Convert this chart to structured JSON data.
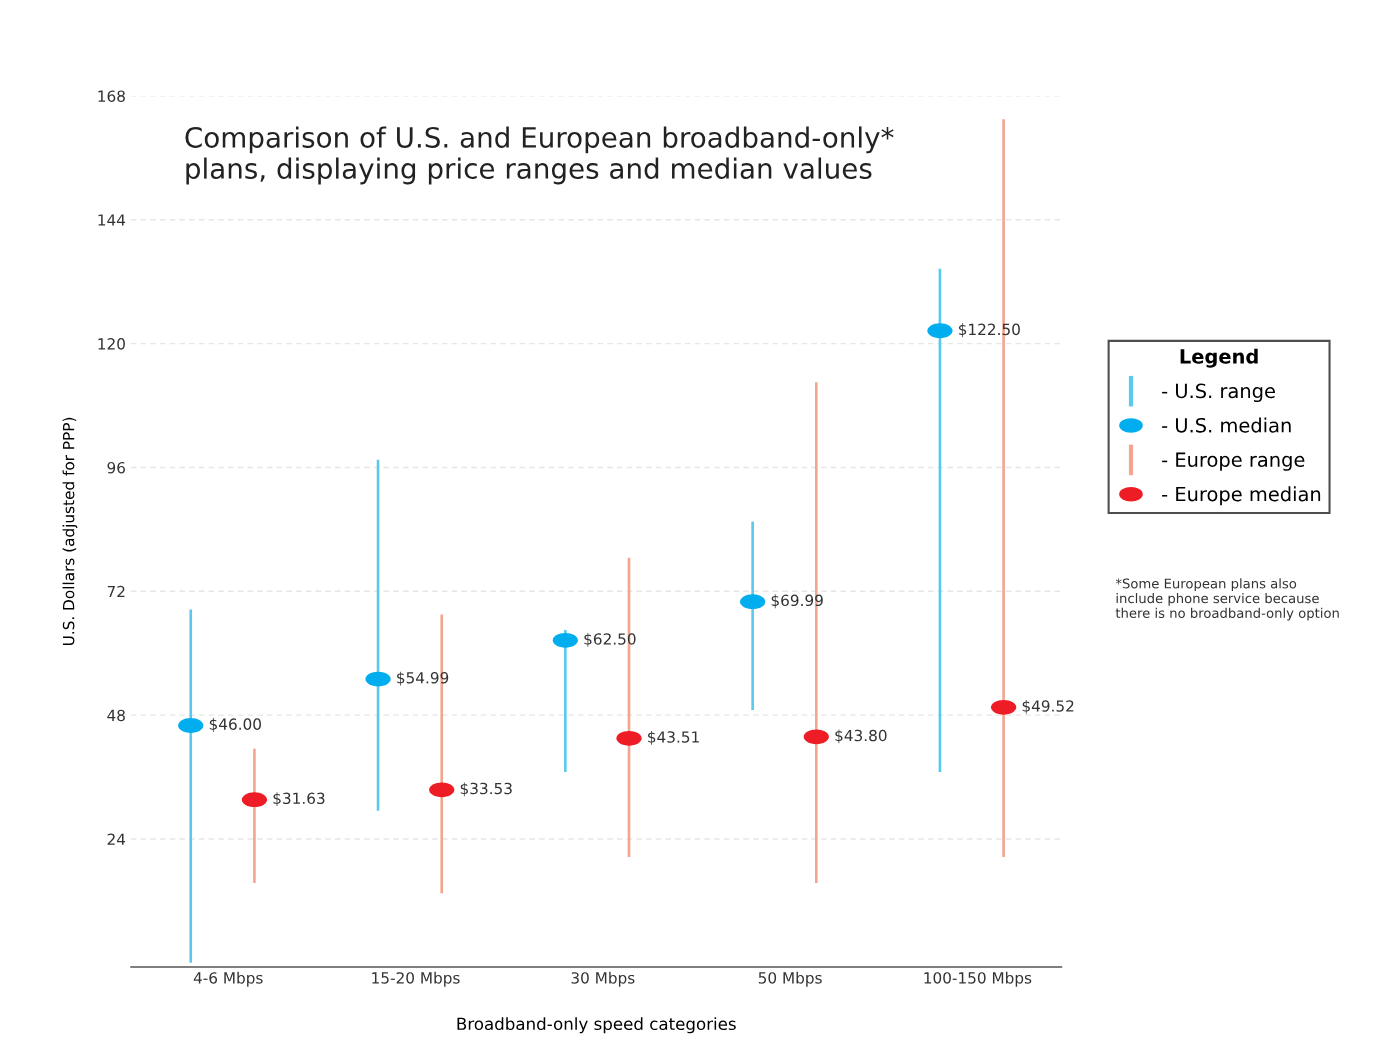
{
  "chart_data": {
    "type": "scatter",
    "title": "Comparison of U.S. and European broadband-only*\nplans, displaying price ranges and median values",
    "xlabel": "Broadband-only speed categories",
    "ylabel": "U.S. Dollars (adjusted for PPP)",
    "legend_title": "Legend",
    "categories": [
      "4-6 Mbps",
      "15-20 Mbps",
      "30 Mbps",
      "50 Mbps",
      "100-150 Mbps"
    ],
    "series": [
      {
        "name": "- U.S. range",
        "type": "bar",
        "color": "#5bc8ef",
        "base": [
          0,
          29.5,
          37,
          49,
          37
        ],
        "values": [
          68.5,
          68,
          27.5,
          36.5,
          97.5
        ]
      },
      {
        "name": "- U.S. median",
        "color": "#00aeef",
        "values": [
          46.0,
          54.99,
          62.5,
          69.99,
          122.5
        ],
        "value_labels": [
          "$46.00",
          "$54.99",
          "$62.50",
          "$69.99",
          "$122.50"
        ]
      },
      {
        "name": "- Europe range",
        "type": "bar",
        "color": "#f4a58f",
        "base": [
          15.5,
          13.5,
          20.5,
          15.5,
          20.5
        ],
        "values": [
          26,
          54,
          58,
          97,
          143
        ]
      },
      {
        "name": "- Europe median",
        "color": "#ee1c25",
        "values": [
          31.63,
          33.53,
          43.51,
          43.8,
          49.52
        ],
        "value_labels": [
          "$31.63",
          "$33.53",
          "$43.51",
          "$43.80",
          "$49.52"
        ]
      }
    ],
    "ylim": [
      -0.8,
      168
    ],
    "yticks": [
      24,
      48,
      72,
      96,
      120,
      144,
      168
    ],
    "grid": "y",
    "legend": "right",
    "marker": "circle",
    "annotations": [
      "*Some European plans also\ninclude phone service because\nthere is no broadband-only option"
    ]
  }
}
